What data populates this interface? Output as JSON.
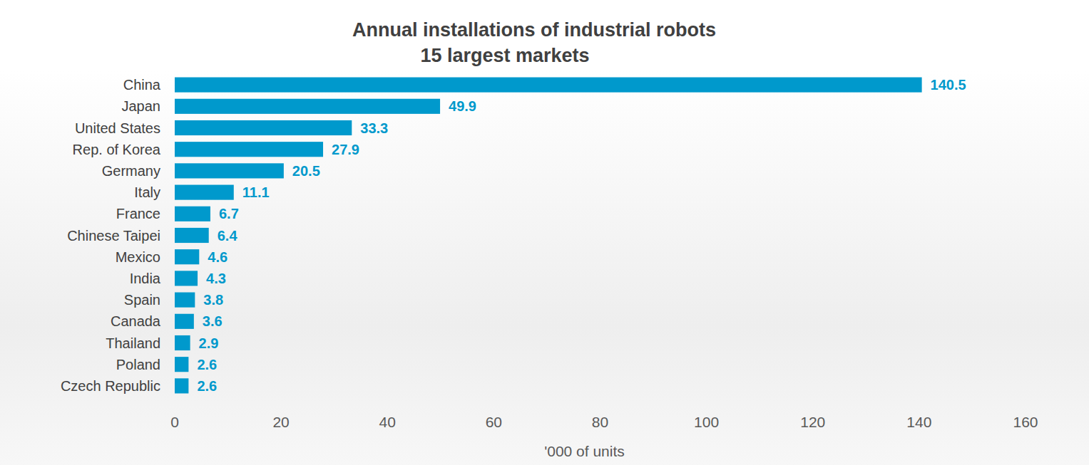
{
  "chart_data": {
    "type": "bar",
    "orientation": "horizontal",
    "title": "Annual installations of industrial robots",
    "subtitle": "15 largest markets",
    "x_label": "'000 of units",
    "categories": [
      "China",
      "Japan",
      "United States",
      "Rep. of Korea",
      "Germany",
      "Italy",
      "France",
      "Chinese Taipei",
      "Mexico",
      "India",
      "Spain",
      "Canada",
      "Thailand",
      "Poland",
      "Czech Republic"
    ],
    "values": [
      140.5,
      49.9,
      33.3,
      27.9,
      20.5,
      11.1,
      6.7,
      6.4,
      4.6,
      4.3,
      3.8,
      3.6,
      2.9,
      2.6,
      2.6
    ],
    "color": "#0099cc",
    "xlim": [
      0,
      160
    ],
    "xticks": [
      0,
      20,
      40,
      60,
      80,
      100,
      120,
      140,
      160
    ],
    "grid": false,
    "data_labels": true
  }
}
